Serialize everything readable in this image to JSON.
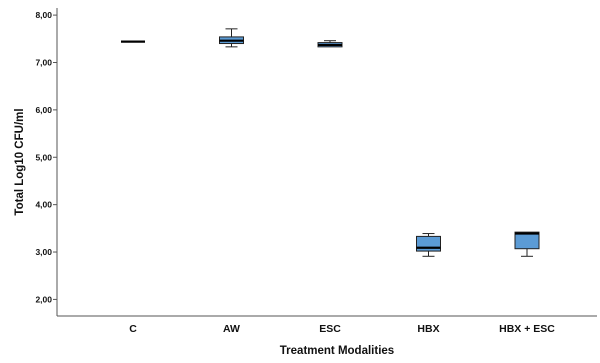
{
  "chart_data": {
    "type": "box",
    "title": "",
    "xlabel": "Treatment Modalities",
    "ylabel": "Total Log10 CFU/ml",
    "categories": [
      "C",
      "AW",
      "ESC",
      "HBX",
      "HBX + ESC"
    ],
    "ylim": [
      1.65,
      8.15
    ],
    "yticks": [
      2,
      3,
      4,
      5,
      6,
      7,
      8
    ],
    "ytick_labels": [
      "2,00",
      "3,00",
      "4,00",
      "5,00",
      "6,00",
      "7,00",
      "8,00"
    ],
    "grid": false,
    "legend": "none",
    "box_color": "#5b9bd5",
    "boxes": [
      {
        "category": "C",
        "min": 7.44,
        "q1": 7.44,
        "median": 7.44,
        "q3": 7.44,
        "max": 7.44
      },
      {
        "category": "AW",
        "min": 7.33,
        "q1": 7.4,
        "median": 7.46,
        "q3": 7.54,
        "max": 7.71
      },
      {
        "category": "ESC",
        "min": 7.33,
        "q1": 7.33,
        "median": 7.37,
        "q3": 7.42,
        "max": 7.46
      },
      {
        "category": "HBX",
        "min": 2.91,
        "q1": 3.02,
        "median": 3.09,
        "q3": 3.33,
        "max": 3.39
      },
      {
        "category": "HBX + ESC",
        "min": 2.91,
        "q1": 3.07,
        "median": 3.39,
        "q3": 3.42,
        "max": 3.42
      }
    ]
  }
}
